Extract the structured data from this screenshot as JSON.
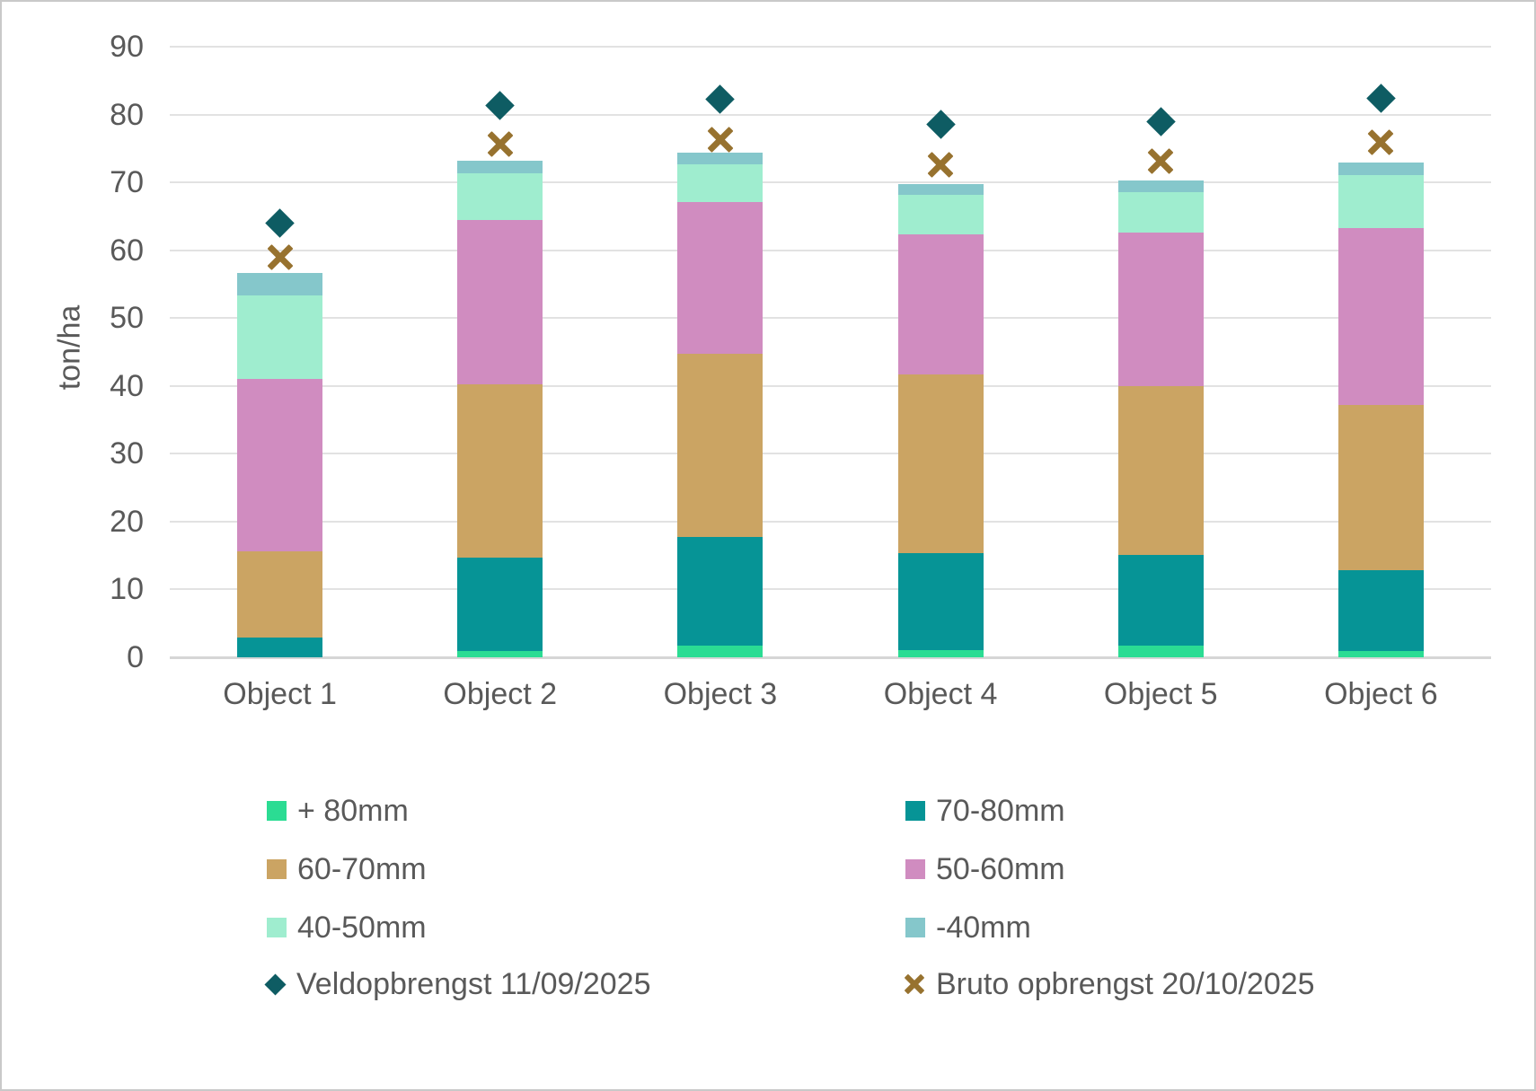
{
  "chart_data": {
    "type": "bar",
    "subtype": "stacked-column-with-point-markers",
    "categories": [
      "Object 1",
      "Object 2",
      "Object 3",
      "Object 4",
      "Object 5",
      "Object 6"
    ],
    "stack_series": [
      {
        "name": "+ 80mm",
        "color": "#2bdc93",
        "values": [
          0,
          0.9,
          1.7,
          1.1,
          1.7,
          0.9
        ]
      },
      {
        "name": "70-80mm",
        "color": "#069496",
        "values": [
          2.9,
          13.8,
          16.1,
          14.3,
          13.4,
          12.0
        ]
      },
      {
        "name": "60-70mm",
        "color": "#cba463",
        "values": [
          12.7,
          25.5,
          27.0,
          26.3,
          24.9,
          24.3
        ]
      },
      {
        "name": "50-60mm",
        "color": "#d08cc0",
        "values": [
          25.4,
          24.3,
          22.3,
          20.6,
          22.6,
          26.1
        ]
      },
      {
        "name": "40-50mm",
        "color": "#9fedcf",
        "values": [
          12.3,
          6.9,
          5.6,
          5.9,
          6.0,
          7.8
        ]
      },
      {
        "name": "-40mm",
        "color": "#85c7cb",
        "values": [
          3.3,
          1.8,
          1.7,
          1.6,
          1.7,
          1.8
        ]
      }
    ],
    "marker_series": [
      {
        "name": "Veldopbrengst 11/09/2025",
        "marker": "diamond",
        "color": "#0e5c63",
        "values": [
          64.0,
          81.3,
          82.2,
          78.6,
          79.0,
          82.4
        ]
      },
      {
        "name": "Bruto opbrengst 20/10/2025",
        "marker": "x",
        "color": "#97722f",
        "values": [
          59.0,
          75.6,
          76.3,
          72.6,
          73.1,
          75.9
        ]
      }
    ],
    "title": "",
    "xlabel": "",
    "ylabel": "ton/ha",
    "ylim": [
      0,
      90
    ],
    "yticks": [
      0,
      10,
      20,
      30,
      40,
      50,
      60,
      70,
      80,
      90
    ],
    "grid": "horizontal",
    "legend_position": "bottom-two-columns"
  },
  "style": {
    "text_color": "#595959",
    "gridline_color": "#e2e2e2",
    "axisline_color": "#d6d6d6",
    "background": "#ffffff",
    "border_color": "#c9c9c9"
  }
}
